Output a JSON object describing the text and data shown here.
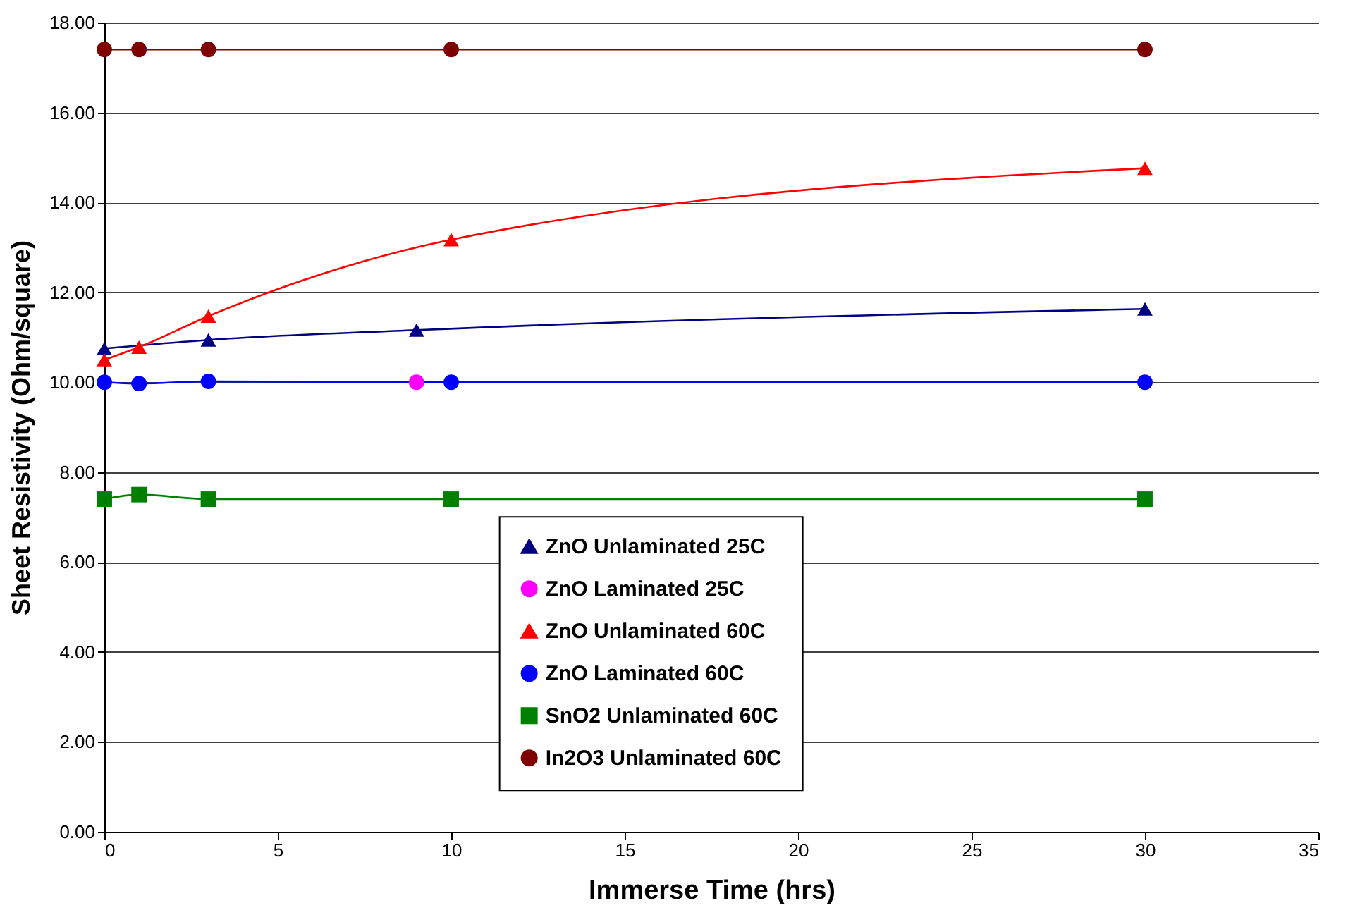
{
  "chart_data": {
    "type": "line",
    "xlabel": "Immerse Time (hrs)",
    "ylabel": "Sheet Resistivity (Ohm/square)",
    "xlim": [
      0,
      35
    ],
    "xticks": [
      0,
      5,
      10,
      15,
      20,
      25,
      30,
      35
    ],
    "ylim": [
      0,
      18
    ],
    "yticks": [
      {
        "value": 0,
        "label": "0.00"
      },
      {
        "value": 2,
        "label": "2.00"
      },
      {
        "value": 4,
        "label": "4.00"
      },
      {
        "value": 6,
        "label": "6.00"
      },
      {
        "value": 8,
        "label": "8.00"
      },
      {
        "value": 10,
        "label": "10.00"
      },
      {
        "value": 12,
        "label": "12.00"
      },
      {
        "value": 14,
        "label": "14.00"
      },
      {
        "value": 16,
        "label": "16.00"
      },
      {
        "value": 18,
        "label": "18.00"
      }
    ],
    "grid": "y",
    "legend": "bottom",
    "series": [
      {
        "name": "ZnO Unlaminated 25C",
        "color": "#000080",
        "marker": "triangle",
        "x": [
          0,
          3,
          9,
          30
        ],
        "values": [
          10.75,
          10.94,
          11.16,
          11.63
        ]
      },
      {
        "name": "ZnO Laminated 25C",
        "color": "#ff00ff",
        "marker": "circle",
        "x": [
          9
        ],
        "values": [
          10.0
        ]
      },
      {
        "name": "ZnO Unlaminated 60C",
        "color": "#ff0000",
        "marker": "triangle",
        "x": [
          0,
          1,
          3,
          10,
          30
        ],
        "values": [
          10.5,
          10.78,
          11.47,
          13.17,
          14.76
        ]
      },
      {
        "name": "ZnO Laminated 60C",
        "color": "#0000ff",
        "marker": "circle",
        "x": [
          0,
          1,
          3,
          10,
          30
        ],
        "values": [
          10.0,
          9.97,
          10.02,
          10.0,
          10.0
        ]
      },
      {
        "name": "SnO2 Unlaminated 60C",
        "color": "#008000",
        "marker": "square",
        "x": [
          0,
          1,
          3,
          10,
          30
        ],
        "values": [
          7.4,
          7.5,
          7.4,
          7.4,
          7.4
        ]
      },
      {
        "name": "In2O3 Unlaminated 60C",
        "color": "#800000",
        "marker": "circle",
        "x": [
          0,
          1,
          3,
          10,
          30
        ],
        "values": [
          17.4,
          17.4,
          17.4,
          17.4,
          17.4
        ]
      }
    ]
  }
}
